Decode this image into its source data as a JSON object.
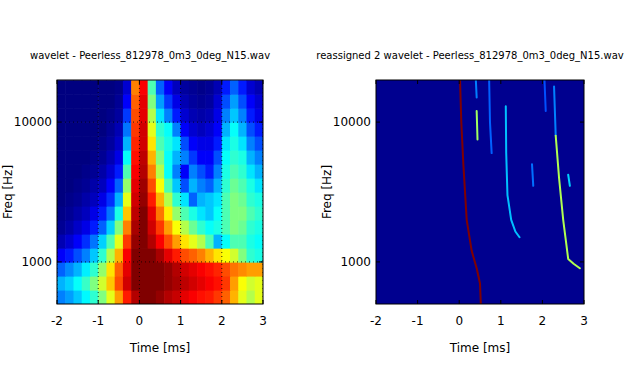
{
  "chart_data": [
    {
      "type": "heatmap",
      "title": "wavelet -  Peerless_812978_0m3_0deg_N15.wav",
      "x_label": "Time [ms]",
      "y_label": "Freq [Hz]",
      "xlim": [
        -2,
        3
      ],
      "ylim": [
        500,
        20000
      ],
      "xticks": [
        -2,
        -1,
        0,
        1,
        2,
        3
      ],
      "yticks": [
        1000,
        10000
      ],
      "log": "y",
      "grid": true,
      "color_range": [
        0,
        1
      ],
      "x": [
        -1.9,
        -1.7,
        -1.5,
        -1.3,
        -1.1,
        -0.9,
        -0.7,
        -0.5,
        -0.3,
        -0.1,
        0.1,
        0.3,
        0.5,
        0.7,
        0.9,
        1.1,
        1.3,
        1.5,
        1.7,
        1.9,
        2.1,
        2.3,
        2.5,
        2.7,
        2.9
      ],
      "y": [
        561,
        707,
        890,
        1120,
        1410,
        1778,
        2239,
        2818,
        3548,
        4467,
        5623,
        7079,
        8913,
        11220,
        14125,
        17783
      ],
      "cells": [
        [
          0.25,
          0.28,
          0.32,
          0.37,
          0.42,
          0.5,
          0.6,
          0.72,
          0.85,
          0.95,
          1.0,
          1.0,
          0.98,
          0.95,
          0.93,
          0.9,
          0.88,
          0.86,
          0.85,
          0.82,
          0.78,
          0.7,
          0.6,
          0.55,
          0.6
        ],
        [
          0.3,
          0.33,
          0.38,
          0.43,
          0.5,
          0.58,
          0.68,
          0.8,
          0.92,
          1.0,
          1.0,
          1.0,
          1.0,
          0.98,
          0.96,
          0.94,
          0.92,
          0.9,
          0.88,
          0.86,
          0.82,
          0.72,
          0.62,
          0.58,
          0.6
        ],
        [
          0.22,
          0.26,
          0.3,
          0.36,
          0.42,
          0.52,
          0.65,
          0.78,
          0.9,
          1.0,
          1.0,
          1.0,
          1.0,
          0.98,
          0.95,
          0.92,
          0.9,
          0.88,
          0.86,
          0.84,
          0.8,
          0.76,
          0.74,
          0.72,
          0.72
        ],
        [
          0.12,
          0.15,
          0.2,
          0.25,
          0.32,
          0.42,
          0.55,
          0.7,
          0.88,
          1.0,
          1.0,
          1.0,
          0.96,
          0.9,
          0.85,
          0.8,
          0.78,
          0.75,
          0.7,
          0.65,
          0.62,
          0.58,
          0.5,
          0.42,
          0.4
        ],
        [
          0.05,
          0.08,
          0.12,
          0.17,
          0.24,
          0.33,
          0.45,
          0.6,
          0.82,
          0.98,
          1.0,
          0.95,
          0.88,
          0.8,
          0.72,
          0.65,
          0.6,
          0.55,
          0.45,
          0.3,
          0.38,
          0.45,
          0.45,
          0.4,
          0.38
        ],
        [
          0.02,
          0.04,
          0.07,
          0.1,
          0.15,
          0.22,
          0.33,
          0.5,
          0.75,
          0.96,
          1.0,
          0.92,
          0.82,
          0.72,
          0.62,
          0.55,
          0.48,
          0.42,
          0.38,
          0.4,
          0.45,
          0.5,
          0.48,
          0.42,
          0.4
        ],
        [
          0.01,
          0.02,
          0.04,
          0.06,
          0.1,
          0.15,
          0.24,
          0.4,
          0.68,
          0.94,
          1.0,
          0.9,
          0.76,
          0.64,
          0.52,
          0.45,
          0.4,
          0.35,
          0.32,
          0.38,
          0.45,
          0.5,
          0.5,
          0.45,
          0.42
        ],
        [
          0,
          0.01,
          0.02,
          0.04,
          0.06,
          0.1,
          0.17,
          0.3,
          0.6,
          0.92,
          0.98,
          0.85,
          0.7,
          0.55,
          0.42,
          0.35,
          0.22,
          0.3,
          0.32,
          0.35,
          0.45,
          0.5,
          0.48,
          0.42,
          0.4
        ],
        [
          0,
          0,
          0.01,
          0.02,
          0.04,
          0.06,
          0.12,
          0.22,
          0.52,
          0.9,
          0.97,
          0.8,
          0.62,
          0.45,
          0.32,
          0.2,
          0.3,
          0.25,
          0.22,
          0.3,
          0.42,
          0.48,
          0.45,
          0.4,
          0.35
        ],
        [
          0,
          0,
          0,
          0.01,
          0.02,
          0.04,
          0.08,
          0.15,
          0.45,
          0.88,
          0.95,
          0.75,
          0.55,
          0.38,
          0.25,
          0.12,
          0.25,
          0.2,
          0.15,
          0.25,
          0.4,
          0.45,
          0.42,
          0.35,
          0.3
        ],
        [
          0,
          0,
          0,
          0,
          0.01,
          0.02,
          0.05,
          0.1,
          0.38,
          0.86,
          0.94,
          0.7,
          0.5,
          0.38,
          0.3,
          0.25,
          0.18,
          0.12,
          0.12,
          0.2,
          0.38,
          0.42,
          0.4,
          0.3,
          0.25
        ],
        [
          0,
          0,
          0,
          0,
          0,
          0.01,
          0.03,
          0.07,
          0.3,
          0.84,
          0.92,
          0.65,
          0.45,
          0.4,
          0.35,
          0.2,
          0.12,
          0.1,
          0.1,
          0.15,
          0.35,
          0.4,
          0.35,
          0.25,
          0.2
        ],
        [
          0,
          0,
          0,
          0,
          0,
          0,
          0.02,
          0.05,
          0.24,
          0.82,
          0.92,
          0.6,
          0.42,
          0.38,
          0.25,
          0.12,
          0.08,
          0.06,
          0.08,
          0.12,
          0.3,
          0.38,
          0.3,
          0.2,
          0.15
        ],
        [
          0,
          0,
          0,
          0,
          0,
          0,
          0.01,
          0.03,
          0.18,
          0.8,
          0.9,
          0.55,
          0.35,
          0.25,
          0.15,
          0.08,
          0.05,
          0.04,
          0.05,
          0.1,
          0.25,
          0.32,
          0.25,
          0.15,
          0.1
        ],
        [
          0,
          0,
          0,
          0,
          0,
          0,
          0,
          0.02,
          0.12,
          0.78,
          0.9,
          0.5,
          0.28,
          0.18,
          0.1,
          0.05,
          0.03,
          0.02,
          0.03,
          0.08,
          0.2,
          0.28,
          0.2,
          0.12,
          0.08
        ],
        [
          0,
          0,
          0,
          0,
          0,
          0,
          0,
          0.01,
          0.08,
          0.75,
          0.88,
          0.45,
          0.22,
          0.12,
          0.06,
          0.03,
          0.02,
          0.01,
          0.02,
          0.05,
          0.15,
          0.22,
          0.15,
          0.08,
          0.05
        ]
      ]
    },
    {
      "type": "line",
      "title": "reassigned 2 wavelet -  Peerless_812978_0m3_0deg_N15.wav",
      "x_label": "Time [ms]",
      "y_label": "Freq [Hz]",
      "xlim": [
        -2,
        3
      ],
      "ylim": [
        500,
        20000
      ],
      "xticks": [
        -2,
        -1,
        0,
        1,
        2,
        3
      ],
      "yticks": [
        1000,
        10000
      ],
      "log": "y",
      "grid": false,
      "color": "#00008f",
      "series": [
        {
          "color": "#800000",
          "x": [
            0.02,
            0.05,
            0.1,
            0.18,
            0.3,
            0.42,
            0.5,
            0.52
          ],
          "values": [
            20000,
            10000,
            5000,
            2000,
            1200,
            900,
            700,
            500
          ]
        },
        {
          "color": "#a0ff60",
          "x": [
            0.42,
            0.44
          ],
          "values": [
            12000,
            7500
          ]
        },
        {
          "color": "#0080ff",
          "x": [
            0.4,
            0.42
          ],
          "values": [
            20000,
            15000
          ]
        },
        {
          "color": "#00c0ff",
          "x": [
            1.12,
            1.13,
            1.16,
            1.25,
            1.35,
            1.45
          ],
          "values": [
            13000,
            6000,
            3000,
            2000,
            1650,
            1500
          ]
        },
        {
          "color": "#0060ff",
          "x": [
            0.72,
            0.74,
            0.78
          ],
          "values": [
            20000,
            10000,
            6000
          ]
        },
        {
          "color": "#0070ff",
          "x": [
            1.75,
            1.78
          ],
          "values": [
            5000,
            3500
          ]
        },
        {
          "color": "#0080ff",
          "x": [
            2.28,
            2.32
          ],
          "values": [
            18000,
            8000
          ]
        },
        {
          "color": "#b0ff50",
          "x": [
            2.32,
            2.4,
            2.5,
            2.58,
            2.62,
            2.75,
            2.9
          ],
          "values": [
            8000,
            4000,
            2000,
            1300,
            1050,
            970,
            900
          ]
        },
        {
          "color": "#0050ff",
          "x": [
            2.05,
            2.08
          ],
          "values": [
            20000,
            12000
          ]
        },
        {
          "color": "#00d0ff",
          "x": [
            2.62,
            2.66
          ],
          "values": [
            4200,
            3500
          ]
        }
      ]
    }
  ]
}
